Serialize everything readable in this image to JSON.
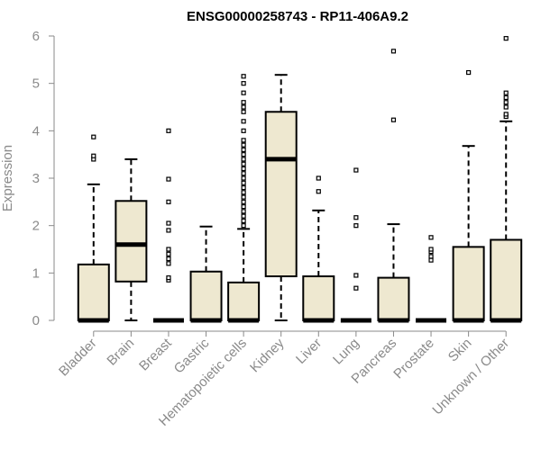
{
  "chart_data": {
    "type": "box",
    "title": "ENSG00000258743 - RP11-406A9.2",
    "ylabel": "Expression",
    "xlabel": "",
    "ylim": [
      0,
      6
    ],
    "yticks": [
      0,
      1,
      2,
      3,
      4,
      5,
      6
    ],
    "grid": false,
    "legend": "none",
    "colors": {
      "box_fill": "#eee8d0",
      "box_stroke": "#000000",
      "axis": "#8a8a8a"
    },
    "categories": [
      "Bladder",
      "Brain",
      "Breast",
      "Gastric",
      "Hematopoietic cells",
      "Kidney",
      "Liver",
      "Lung",
      "Pancreas",
      "Prostate",
      "Skin",
      "Unknown / Other"
    ],
    "boxes": [
      {
        "category": "Bladder",
        "whisker_low": 0,
        "q1": 0,
        "median": 0,
        "q3": 1.18,
        "whisker_high": 2.87,
        "outliers": [
          3.4,
          3.47,
          3.87
        ]
      },
      {
        "category": "Brain",
        "whisker_low": 0,
        "q1": 0.82,
        "median": 1.6,
        "q3": 2.52,
        "whisker_high": 3.4,
        "outliers": []
      },
      {
        "category": "Breast",
        "whisker_low": 0,
        "q1": 0,
        "median": 0,
        "q3": 0,
        "whisker_high": 0,
        "outliers": [
          0.85,
          0.9,
          1.2,
          1.3,
          1.4,
          1.5,
          1.9,
          2.05,
          2.5,
          2.98,
          4.0
        ]
      },
      {
        "category": "Gastric",
        "whisker_low": 0,
        "q1": 0,
        "median": 0,
        "q3": 1.03,
        "whisker_high": 1.98,
        "outliers": []
      },
      {
        "category": "Hematopoietic cells",
        "whisker_low": 0,
        "q1": 0,
        "median": 0,
        "q3": 0.8,
        "whisker_high": 1.93,
        "outliers": [
          2.0,
          2.1,
          2.2,
          2.3,
          2.4,
          2.5,
          2.6,
          2.7,
          2.8,
          2.9,
          3.0,
          3.1,
          3.2,
          3.3,
          3.4,
          3.5,
          3.6,
          3.7,
          3.8,
          4.0,
          4.2,
          4.4,
          4.5,
          4.6,
          4.8,
          5.0,
          5.15
        ]
      },
      {
        "category": "Kidney",
        "whisker_low": 0,
        "q1": 0.93,
        "median": 3.4,
        "q3": 4.4,
        "whisker_high": 5.18,
        "outliers": []
      },
      {
        "category": "Liver",
        "whisker_low": 0,
        "q1": 0,
        "median": 0,
        "q3": 0.93,
        "whisker_high": 2.32,
        "outliers": [
          2.72,
          3.0
        ]
      },
      {
        "category": "Lung",
        "whisker_low": 0,
        "q1": 0,
        "median": 0,
        "q3": 0,
        "whisker_high": 0,
        "outliers": [
          0.68,
          0.95,
          2.0,
          2.17,
          3.17
        ]
      },
      {
        "category": "Pancreas",
        "whisker_low": 0,
        "q1": 0,
        "median": 0,
        "q3": 0.9,
        "whisker_high": 2.03,
        "outliers": [
          4.23,
          5.68
        ]
      },
      {
        "category": "Prostate",
        "whisker_low": 0,
        "q1": 0,
        "median": 0,
        "q3": 0,
        "whisker_high": 0,
        "outliers": [
          1.27,
          1.35,
          1.45,
          1.5,
          1.75
        ]
      },
      {
        "category": "Skin",
        "whisker_low": 0,
        "q1": 0,
        "median": 0,
        "q3": 1.55,
        "whisker_high": 3.68,
        "outliers": [
          5.23
        ]
      },
      {
        "category": "Unknown / Other",
        "whisker_low": 0,
        "q1": 0,
        "median": 0,
        "q3": 1.7,
        "whisker_high": 4.2,
        "outliers": [
          4.3,
          4.35,
          4.5,
          4.6,
          4.7,
          4.8,
          5.95
        ]
      }
    ]
  }
}
